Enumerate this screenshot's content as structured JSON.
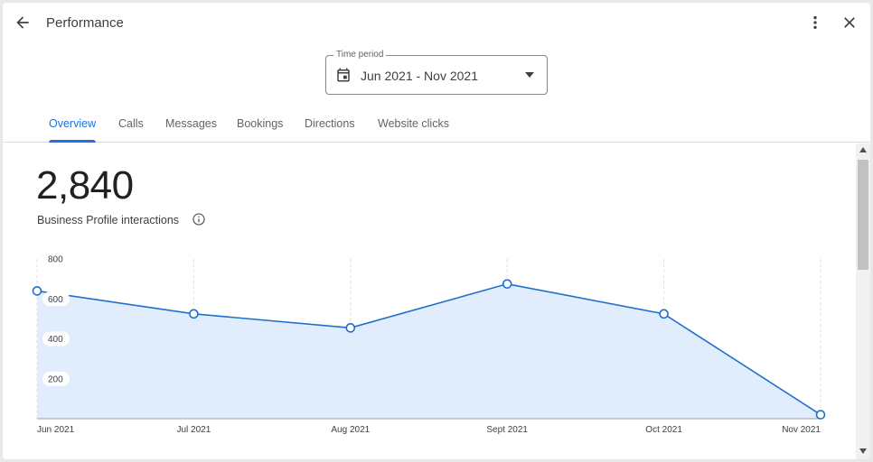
{
  "header": {
    "title": "Performance",
    "back_icon": "arrow-back-icon",
    "more_icon": "more-vert-icon",
    "close_icon": "close-icon"
  },
  "time_period": {
    "label": "Time period",
    "value": "Jun 2021 - Nov 2021"
  },
  "tabs": [
    {
      "label": "Overview",
      "active": true
    },
    {
      "label": "Calls",
      "active": false
    },
    {
      "label": "Messages",
      "active": false
    },
    {
      "label": "Bookings",
      "active": false
    },
    {
      "label": "Directions",
      "active": false
    },
    {
      "label": "Website clicks",
      "active": false
    }
  ],
  "metric": {
    "value": "2,840",
    "label": "Business Profile interactions"
  },
  "colors": {
    "accent": "#1a73e8",
    "line": "#1f6fcc",
    "area": "#e1edfc"
  },
  "chart_data": {
    "type": "area",
    "categories": [
      "Jun 2021",
      "Jul 2021",
      "Aug 2021",
      "Sept 2021",
      "Oct 2021",
      "Nov 2021"
    ],
    "values": [
      640,
      525,
      455,
      675,
      525,
      20
    ],
    "y_ticks": [
      "200",
      "400",
      "600",
      "800"
    ],
    "ylim": [
      0,
      800
    ],
    "grid": true
  }
}
